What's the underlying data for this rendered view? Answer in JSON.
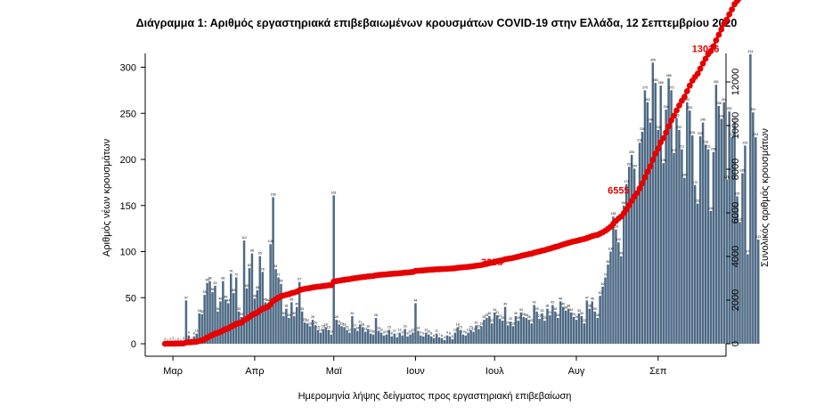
{
  "chart_data": {
    "type": "bar",
    "title": "Διάγραμμα 1: Αριθμός εργαστηριακά επιβεβαιωμένων κρουσμάτων COVID-19 στην Ελλάδα, 12 Σεπτεμβρίου 2020",
    "xlabel": "Ημερομηνία λήψης δείγματος προς εργαστηριακή επιβεβαίωση",
    "ylabel_left": "Αριθμός νέων κρουσμάτων",
    "ylabel_right": "Συνολικός αριθμός κρουσμάτων",
    "ylim_left": [
      0,
      330
    ],
    "ylim_right": [
      0,
      13200
    ],
    "yticks_left": [
      0,
      50,
      100,
      150,
      200,
      250,
      300
    ],
    "yticks_right": [
      0,
      2000,
      4000,
      6000,
      8000,
      10000,
      12000
    ],
    "month_labels": [
      "Μαρ",
      "Απρ",
      "Μαϊ",
      "Ιουν",
      "Ιουλ",
      "Αυγ",
      "Σεπ"
    ],
    "month_start_day_index": [
      3,
      34,
      64,
      95,
      125,
      156,
      187
    ],
    "start_date": "2020-02-27",
    "bar_color": "#4e6a85",
    "line_color": "#e60000",
    "daily_new_cases": [
      2,
      1,
      2,
      3,
      1,
      2,
      1,
      3,
      47,
      9,
      2,
      8,
      11,
      33,
      32,
      53,
      66,
      68,
      56,
      63,
      35,
      46,
      68,
      48,
      44,
      76,
      55,
      72,
      35,
      29,
      112,
      60,
      82,
      98,
      49,
      58,
      95,
      78,
      45,
      44,
      108,
      159,
      81,
      72,
      65,
      30,
      38,
      28,
      45,
      30,
      40,
      67,
      35,
      23,
      22,
      19,
      26,
      20,
      15,
      12,
      16,
      18,
      15,
      10,
      161,
      26,
      21,
      19,
      18,
      15,
      12,
      30,
      17,
      14,
      21,
      18,
      13,
      16,
      11,
      10,
      28,
      14,
      12,
      9,
      10,
      15,
      8,
      11,
      7,
      12,
      9,
      16,
      8,
      10,
      12,
      44,
      14,
      9,
      8,
      12,
      10,
      8,
      6,
      11,
      7,
      6,
      4,
      9,
      8,
      5,
      12,
      18,
      15,
      10,
      9,
      12,
      15,
      13,
      20,
      16,
      19,
      26,
      28,
      30,
      22,
      34,
      31,
      27,
      25,
      40,
      20,
      24,
      19,
      30,
      25,
      34,
      29,
      28,
      26,
      22,
      42,
      35,
      27,
      33,
      25,
      38,
      31,
      42,
      35,
      28,
      46,
      40,
      36,
      38,
      34,
      29,
      26,
      33,
      30,
      22,
      47,
      38,
      46,
      35,
      28,
      52,
      62,
      72,
      86,
      100,
      138,
      124,
      110,
      95,
      150,
      173,
      192,
      205,
      190,
      160,
      218,
      230,
      275,
      262,
      240,
      305,
      283,
      232,
      280,
      196,
      254,
      288,
      275,
      207,
      245,
      232,
      211,
      180,
      262,
      253,
      226,
      172,
      152,
      225,
      240,
      216,
      211,
      144,
      208,
      281,
      258,
      244,
      262,
      178,
      252,
      224,
      240,
      160,
      132,
      185,
      215,
      97,
      314,
      251,
      224,
      113
    ],
    "bar_value_labels": [
      "2",
      "1",
      "2",
      "3",
      "1",
      "2",
      "1",
      "3",
      "47",
      "9",
      "2",
      "8",
      "11",
      "33",
      "32",
      "53",
      "66",
      "68",
      "56",
      "63",
      "35",
      "46",
      "68",
      "48",
      "44",
      "76",
      "55",
      "72",
      "35",
      "29",
      "112",
      "60",
      "82",
      "98",
      "49",
      "58",
      "95",
      "78",
      "45",
      "44",
      "108",
      "159",
      "81",
      "72",
      "65",
      "30",
      "38",
      "28",
      "45",
      "30",
      "40",
      "67",
      "35",
      "23",
      "22",
      "19",
      "26",
      "20",
      "15",
      "12",
      "16",
      "18",
      "15",
      "10",
      "161",
      "26",
      "21",
      "19",
      "18",
      "15",
      "12",
      "30",
      "17",
      "14",
      "21",
      "18",
      "13",
      "16",
      "11",
      "10",
      "28",
      "14",
      "12",
      "9",
      "10",
      "15",
      "8",
      "11",
      "7",
      "12",
      "9",
      "16",
      "8",
      "10",
      "12",
      "44",
      "14",
      "9",
      "8",
      "12",
      "10",
      "8",
      "6",
      "11",
      "7",
      "6",
      "4",
      "9",
      "8",
      "5",
      "12",
      "18",
      "15",
      "10",
      "9",
      "12",
      "15",
      "13",
      "20",
      "16",
      "19",
      "26",
      "28",
      "30",
      "22",
      "34",
      "31",
      "27",
      "25",
      "40",
      "20",
      "24",
      "19",
      "30",
      "25",
      "34",
      "29",
      "28",
      "26",
      "22",
      "42",
      "35",
      "27",
      "33",
      "25",
      "38",
      "31",
      "42",
      "35",
      "28",
      "46",
      "40",
      "36",
      "38",
      "34",
      "29",
      "26",
      "33",
      "30",
      "22",
      "47",
      "38",
      "46",
      "35",
      "28",
      "52",
      "62",
      "72",
      "86",
      "100",
      "138",
      "124",
      "110",
      "95",
      "150",
      "173",
      "192",
      "205",
      "190",
      "160",
      "218",
      "230",
      "275",
      "262",
      "240",
      "305",
      "283",
      "232",
      "280",
      "196",
      "254",
      "288",
      "275",
      "207",
      "245",
      "232",
      "211",
      "180",
      "262",
      "253",
      "226",
      "172",
      "152",
      "225",
      "240",
      "216",
      "211",
      "144",
      "208",
      "281",
      "258",
      "244",
      "262",
      "178",
      "252",
      "224",
      "240",
      "160",
      "132",
      "185",
      "215",
      "97",
      "314",
      "251",
      "224",
      "113"
    ],
    "cumulative_end": 13036,
    "annotations": [
      {
        "text": "3258",
        "day_index": 124,
        "value": 3258
      },
      {
        "text": "6555",
        "day_index": 172,
        "value": 6555
      },
      {
        "text": "13036",
        "day_index": 205,
        "value": 13036
      }
    ]
  }
}
